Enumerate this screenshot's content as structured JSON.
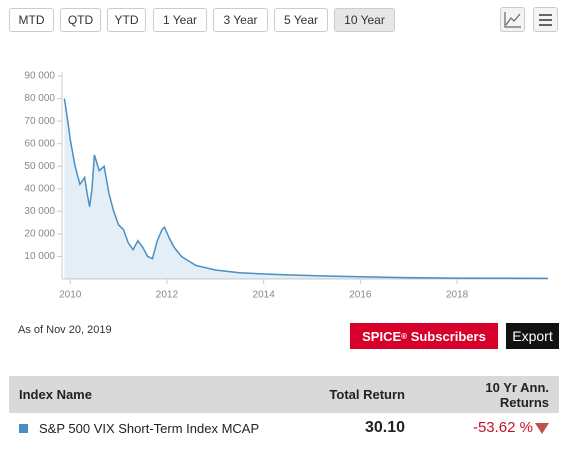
{
  "toolbar": {
    "ranges": [
      "MTD",
      "QTD",
      "YTD",
      "1 Year",
      "3 Year",
      "5 Year",
      "10 Year"
    ],
    "selected": 6
  },
  "chart_data": {
    "type": "area",
    "color": "#4a8fc4",
    "x": [
      2009.88,
      2009.95,
      2010.0,
      2010.1,
      2010.2,
      2010.3,
      2010.35,
      2010.4,
      2010.45,
      2010.5,
      2010.6,
      2010.7,
      2010.8,
      2010.9,
      2011.0,
      2011.1,
      2011.2,
      2011.3,
      2011.4,
      2011.5,
      2011.6,
      2011.7,
      2011.8,
      2011.9,
      2011.95,
      2012.05,
      2012.15,
      2012.3,
      2012.45,
      2012.6,
      2012.8,
      2013.0,
      2013.5,
      2014.0,
      2014.5,
      2015.0,
      2015.5,
      2016.0,
      2016.5,
      2017.0,
      2017.5,
      2018.0,
      2018.5,
      2019.0,
      2019.88
    ],
    "values": [
      80000,
      70000,
      62000,
      50000,
      42000,
      45000,
      38000,
      32000,
      40000,
      55000,
      48000,
      50000,
      38000,
      30000,
      24000,
      22000,
      16000,
      13000,
      17000,
      14000,
      10000,
      9000,
      17000,
      22000,
      23000,
      18000,
      14000,
      10000,
      8000,
      6000,
      5000,
      4000,
      2800,
      2200,
      1800,
      1500,
      1200,
      1000,
      800,
      600,
      500,
      400,
      350,
      300,
      250
    ],
    "xlim": [
      2009.83,
      2019.88
    ],
    "xticks": [
      2010,
      2012,
      2014,
      2016,
      2018
    ],
    "ylim": [
      0,
      90000
    ],
    "yticks": [
      {
        "value": 10000,
        "label": "10 000"
      },
      {
        "value": 20000,
        "label": "20 000"
      },
      {
        "value": 30000,
        "label": "30 000"
      },
      {
        "value": 40000,
        "label": "40 000"
      },
      {
        "value": 50000,
        "label": "50 000"
      },
      {
        "value": 60000,
        "label": "60 000"
      },
      {
        "value": 70000,
        "label": "70 000"
      },
      {
        "value": 80000,
        "label": "80 000"
      },
      {
        "value": 90000,
        "label": "90 000"
      }
    ],
    "grid": false
  },
  "as_of": "As of Nov 20, 2019",
  "actions": {
    "spice": "SPICE",
    "spice_mark": "®",
    "spice_suffix": "Subscribers",
    "export": "Export"
  },
  "table": {
    "headers": [
      "Index Name",
      "Total Return",
      "10 Yr Ann. Returns"
    ],
    "rows": [
      [
        "S&P 500 VIX Short-Term Index MCAP",
        "30.10",
        "-53.62 %"
      ]
    ]
  }
}
